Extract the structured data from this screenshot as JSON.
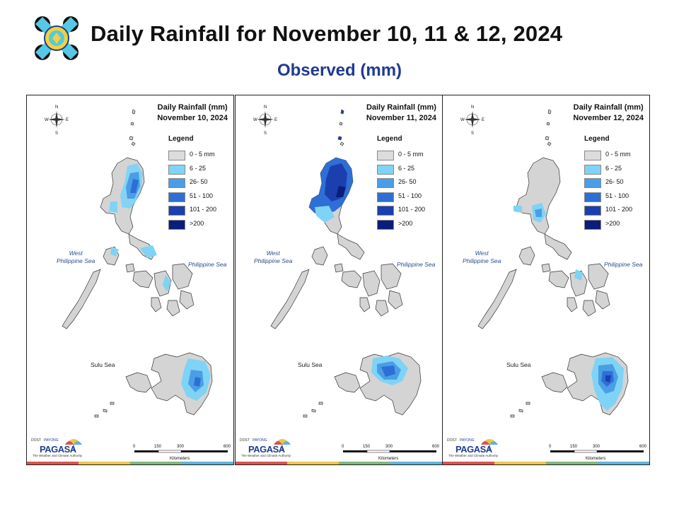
{
  "header": {
    "title": "Daily Rainfall for November 10, 11 & 12, 2024",
    "subtitle": "Observed (mm)"
  },
  "legend": {
    "title": "Legend",
    "items": [
      {
        "label": "0 - 5 mm",
        "color": "#dcdcdc"
      },
      {
        "label": "6 - 25",
        "color": "#7fd3f5"
      },
      {
        "label": "26- 50",
        "color": "#4a9ee6"
      },
      {
        "label": "51 - 100",
        "color": "#2d6fd6"
      },
      {
        "label": "101 - 200",
        "color": "#1c3fae"
      },
      {
        "label": ">200",
        "color": "#0b1d7a"
      }
    ]
  },
  "labels": {
    "west_sea_1": "West",
    "west_sea_2": "Philippine Sea",
    "east_sea": "Philippine Sea",
    "sulu_sea": "Sulu Sea",
    "compass_n": "N",
    "compass_s": "S",
    "compass_e": "E",
    "compass_w": "W",
    "scale_0": "0",
    "scale_150": "150",
    "scale_300": "300",
    "scale_600": "600",
    "scale_unit": "Kilometers",
    "brand": "PAGASA",
    "brand_dost": "DOST",
    "brand_payong": "PAYONG",
    "brand_tag": "The Weather and Climate Authority"
  },
  "maps": [
    {
      "line1": "Daily Rainfall (mm)",
      "line2": "November 10, 2024"
    },
    {
      "line1": "Daily Rainfall (mm)",
      "line2": "November 11, 2024"
    },
    {
      "line1": "Daily Rainfall (mm)",
      "line2": "November 12, 2024"
    }
  ],
  "colors": {
    "land": "#d4d4d4",
    "outline": "#333333",
    "strip": [
      "#d9534f",
      "#e8c84a",
      "#7fb77e",
      "#5fb3d9"
    ]
  }
}
